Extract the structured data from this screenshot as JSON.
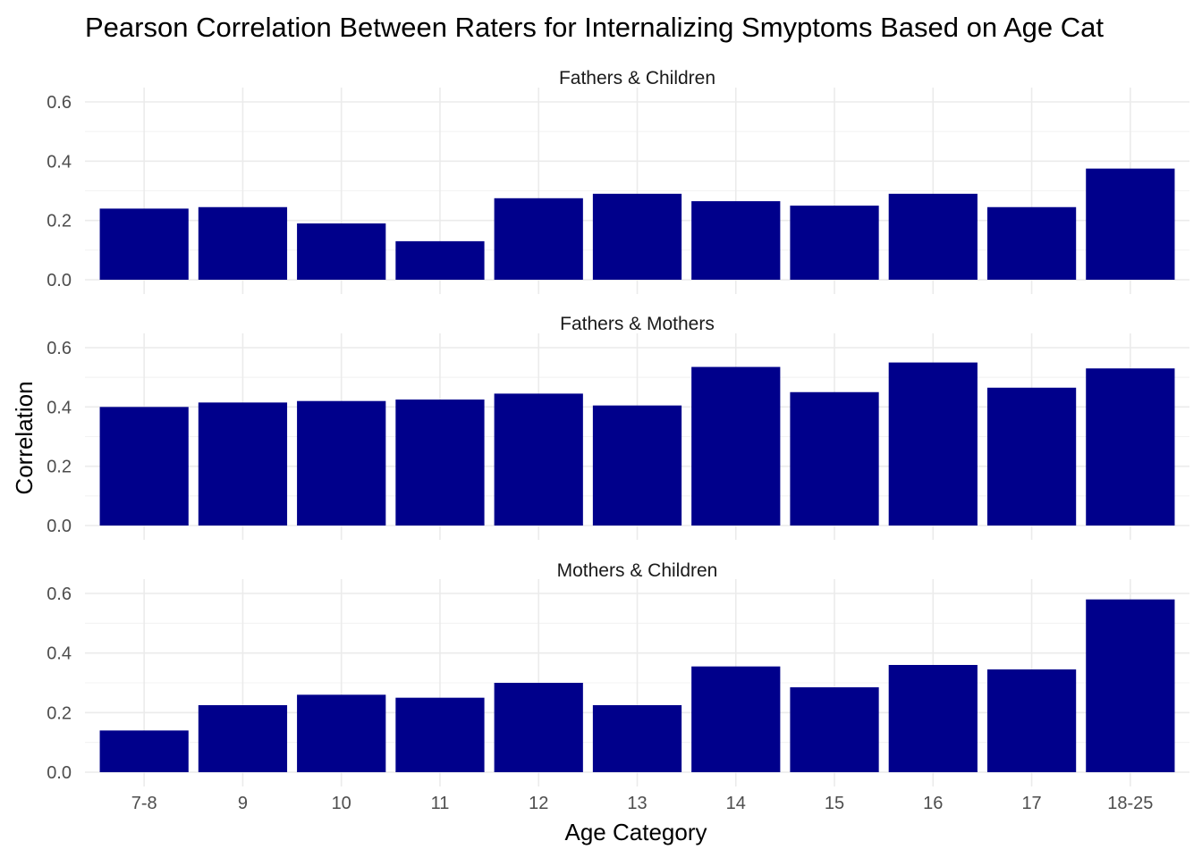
{
  "chart_data": {
    "type": "bar",
    "title": "Pearson Correlation Between Raters for Internalizing Smyptoms Based on Age Cat",
    "xlabel": "Age Category",
    "ylabel": "Correlation",
    "categories": [
      "7-8",
      "9",
      "10",
      "11",
      "12",
      "13",
      "14",
      "15",
      "16",
      "17",
      "18-25"
    ],
    "ylim": [
      0,
      0.6
    ],
    "yticks": [
      "0.0",
      "0.2",
      "0.4",
      "0.6"
    ],
    "bar_color": "#00008B",
    "grid": true,
    "facets": [
      {
        "label": "Fathers & Children",
        "values": [
          0.24,
          0.245,
          0.19,
          0.13,
          0.275,
          0.29,
          0.265,
          0.25,
          0.29,
          0.245,
          0.375
        ]
      },
      {
        "label": "Fathers & Mothers",
        "values": [
          0.4,
          0.415,
          0.42,
          0.425,
          0.445,
          0.405,
          0.535,
          0.45,
          0.55,
          0.465,
          0.53
        ]
      },
      {
        "label": "Mothers & Children",
        "values": [
          0.14,
          0.225,
          0.26,
          0.25,
          0.3,
          0.225,
          0.355,
          0.285,
          0.36,
          0.345,
          0.58
        ]
      }
    ]
  }
}
